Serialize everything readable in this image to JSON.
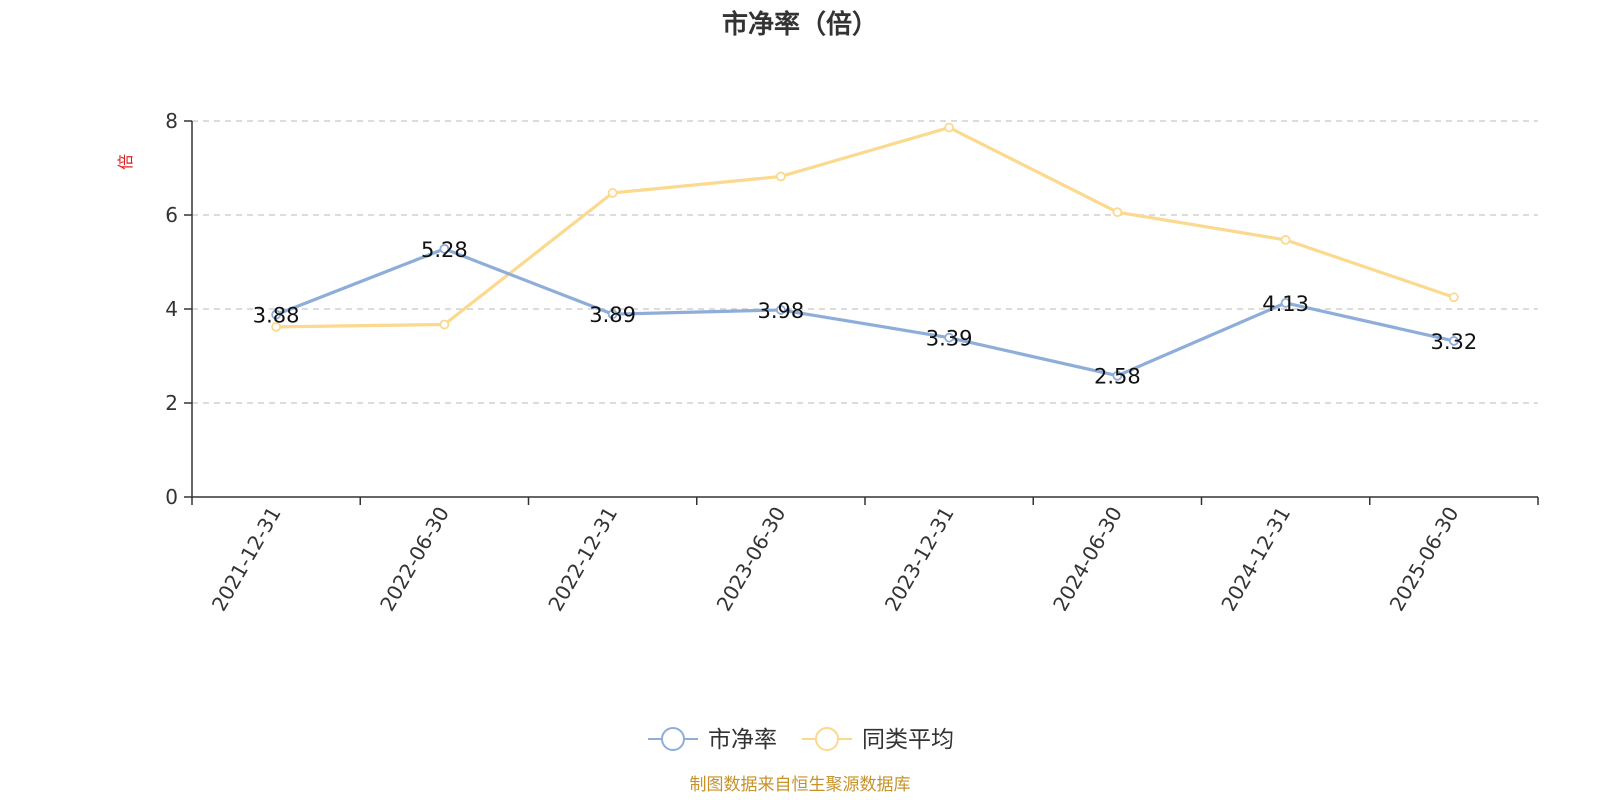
{
  "chart_data": {
    "type": "line",
    "title": "市净率（倍）",
    "ylabel": "倍",
    "xlabel": "",
    "categories": [
      "2021-12-31",
      "2022-06-30",
      "2022-12-31",
      "2023-06-30",
      "2023-12-31",
      "2024-06-30",
      "2024-12-31",
      "2025-06-30"
    ],
    "ylim": [
      0,
      8
    ],
    "yticks": [
      "0",
      "2",
      "4",
      "6",
      "8"
    ],
    "grid": true,
    "legend_position": "bottom-center",
    "series": [
      {
        "name": "市净率",
        "color": "#8eaed9",
        "values": [
          3.88,
          5.28,
          3.89,
          3.98,
          3.39,
          2.58,
          4.13,
          3.32
        ],
        "labels": [
          "3.88",
          "5.28",
          "3.89",
          "3.98",
          "3.39",
          "2.58",
          "4.13",
          "3.32"
        ]
      },
      {
        "name": "同类平均",
        "color": "#fbd98e",
        "values": [
          3.62,
          3.67,
          6.47,
          6.82,
          7.86,
          6.06,
          5.47,
          4.25
        ]
      }
    ],
    "source": "制图数据来自恒生聚源数据库"
  }
}
